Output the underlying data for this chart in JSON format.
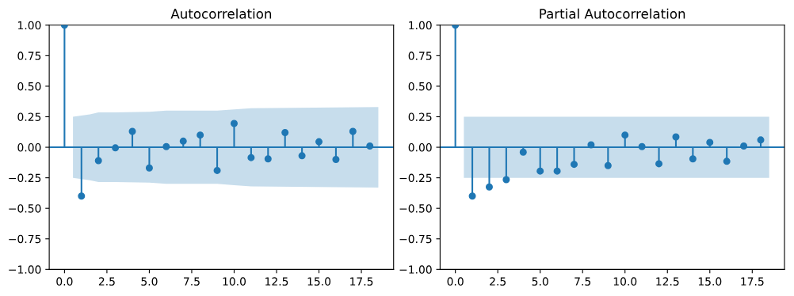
{
  "chart_data": [
    {
      "type": "lollipop",
      "title": "Autocorrelation",
      "grid": false,
      "xlim": [
        -0.9,
        19.4
      ],
      "ylim": [
        -1.0,
        1.0
      ],
      "xticks": [
        {
          "value": 0,
          "label": "0.0"
        },
        {
          "value": 2.5,
          "label": "2.5"
        },
        {
          "value": 5,
          "label": "5.0"
        },
        {
          "value": 7.5,
          "label": "7.5"
        },
        {
          "value": 10,
          "label": "10.0"
        },
        {
          "value": 12.5,
          "label": "12.5"
        },
        {
          "value": 15,
          "label": "15.0"
        },
        {
          "value": 17.5,
          "label": "17.5"
        }
      ],
      "yticks": [
        {
          "value": -1,
          "label": "−1.00"
        },
        {
          "value": -0.75,
          "label": "−0.75"
        },
        {
          "value": -0.5,
          "label": "−0.50"
        },
        {
          "value": -0.25,
          "label": "−0.25"
        },
        {
          "value": 0,
          "label": "0.00"
        },
        {
          "value": 0.25,
          "label": "0.25"
        },
        {
          "value": 0.5,
          "label": "0.50"
        },
        {
          "value": 0.75,
          "label": "0.75"
        },
        {
          "value": 1,
          "label": "1.00"
        }
      ],
      "series": [
        {
          "type": "line",
          "marker": "none",
          "color": "#1f77b4",
          "x": [
            -0.9,
            0.5,
            1.5,
            2,
            3,
            5,
            6,
            9,
            10,
            11,
            18.5,
            19.4
          ],
          "values": [
            0,
            0,
            0,
            0,
            0,
            0,
            0,
            0,
            0,
            0,
            0,
            0
          ],
          "lower": [
            null,
            -0.25,
            -0.27,
            -0.285,
            -0.285,
            -0.29,
            -0.3,
            -0.3,
            -0.31,
            -0.32,
            -0.33,
            null
          ],
          "upper": [
            null,
            0.25,
            0.27,
            0.285,
            0.285,
            0.29,
            0.3,
            0.3,
            0.31,
            0.32,
            0.33,
            null
          ]
        },
        {
          "marker": "circle",
          "color": "#1f77b4",
          "x": [
            0,
            1,
            2,
            3,
            4,
            5,
            6,
            7,
            8,
            9,
            10,
            11,
            12,
            13,
            14,
            15,
            16,
            17,
            18
          ],
          "values": [
            1.0,
            -0.4,
            -0.11,
            -0.005,
            0.13,
            -0.17,
            0.005,
            0.05,
            0.1,
            -0.19,
            0.195,
            -0.085,
            -0.095,
            0.12,
            -0.07,
            0.045,
            -0.1,
            0.13,
            0.01
          ]
        }
      ]
    },
    {
      "type": "lollipop",
      "title": "Partial Autocorrelation",
      "grid": false,
      "xlim": [
        -0.9,
        19.4
      ],
      "ylim": [
        -1.0,
        1.0
      ],
      "xticks": [
        {
          "value": 0,
          "label": "0.0"
        },
        {
          "value": 2.5,
          "label": "2.5"
        },
        {
          "value": 5,
          "label": "5.0"
        },
        {
          "value": 7.5,
          "label": "7.5"
        },
        {
          "value": 10,
          "label": "10.0"
        },
        {
          "value": 12.5,
          "label": "12.5"
        },
        {
          "value": 15,
          "label": "15.0"
        },
        {
          "value": 17.5,
          "label": "17.5"
        }
      ],
      "yticks": [
        {
          "value": -1,
          "label": "−1.00"
        },
        {
          "value": -0.75,
          "label": "−0.75"
        },
        {
          "value": -0.5,
          "label": "−0.50"
        },
        {
          "value": -0.25,
          "label": "−0.25"
        },
        {
          "value": 0,
          "label": "0.00"
        },
        {
          "value": 0.25,
          "label": "0.25"
        },
        {
          "value": 0.5,
          "label": "0.50"
        },
        {
          "value": 0.75,
          "label": "0.75"
        },
        {
          "value": 1,
          "label": "1.00"
        }
      ],
      "series": [
        {
          "type": "line",
          "marker": "none",
          "color": "#1f77b4",
          "x": [
            -0.9,
            0.5,
            18.5,
            19.4
          ],
          "values": [
            0,
            0,
            0,
            0
          ],
          "lower": [
            null,
            -0.25,
            -0.25,
            null
          ],
          "upper": [
            null,
            0.25,
            0.25,
            null
          ]
        },
        {
          "marker": "circle",
          "color": "#1f77b4",
          "x": [
            0,
            1,
            2,
            3,
            4,
            5,
            6,
            7,
            8,
            9,
            10,
            11,
            12,
            13,
            14,
            15,
            16,
            17,
            18
          ],
          "values": [
            1.0,
            -0.4,
            -0.325,
            -0.265,
            -0.04,
            -0.195,
            -0.195,
            -0.14,
            0.02,
            -0.15,
            0.1,
            0.005,
            -0.135,
            0.085,
            -0.095,
            0.04,
            -0.115,
            0.01,
            0.06
          ]
        }
      ]
    }
  ]
}
